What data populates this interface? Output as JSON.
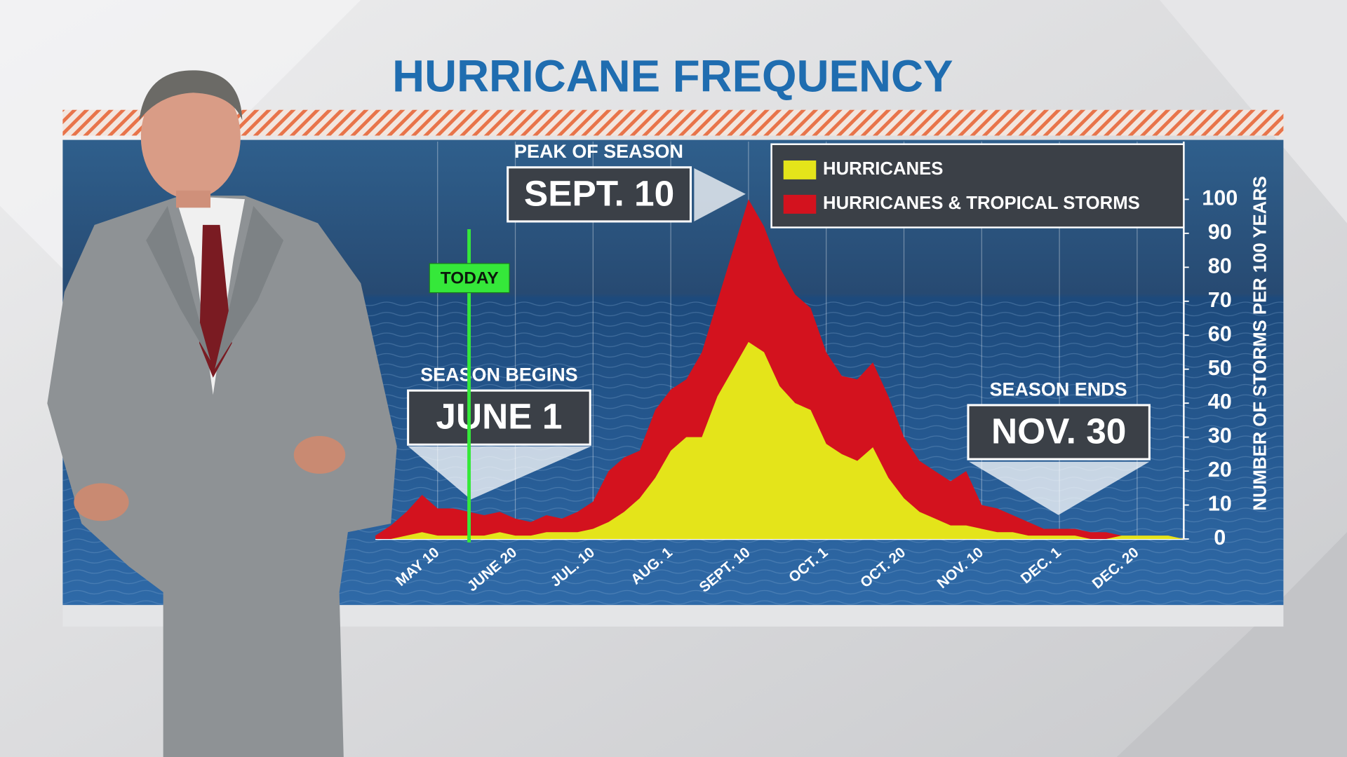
{
  "chart_data": {
    "type": "area",
    "title": "HURRICANE FREQUENCY",
    "categories": [
      null,
      null,
      null,
      null,
      "MAY 10",
      null,
      null,
      null,
      null,
      "JUNE 20",
      null,
      null,
      null,
      null,
      "JUL. 10",
      null,
      null,
      null,
      null,
      "AUG. 1",
      null,
      null,
      null,
      null,
      "SEPT. 10",
      null,
      null,
      null,
      null,
      "OCT. 1",
      null,
      null,
      null,
      null,
      "OCT. 20",
      null,
      null,
      null,
      null,
      "NOV. 10",
      null,
      null,
      null,
      null,
      "DEC. 1",
      null,
      null,
      null,
      null,
      "DEC. 20",
      null,
      null,
      null
    ],
    "series": [
      {
        "name": "HURRICANES",
        "color": "#e4e41a",
        "values": [
          0,
          0,
          1,
          2,
          1,
          1,
          1,
          1,
          2,
          1,
          1,
          2,
          2,
          2,
          3,
          5,
          8,
          12,
          18,
          26,
          30,
          30,
          42,
          50,
          58,
          55,
          45,
          40,
          38,
          28,
          25,
          23,
          27,
          18,
          12,
          8,
          6,
          4,
          4,
          3,
          2,
          2,
          1,
          1,
          1,
          1,
          0,
          0,
          1,
          1,
          1,
          1,
          0
        ]
      },
      {
        "name": "HURRICANES & TROPICAL STORMS",
        "color": "#d3121e",
        "values": [
          1,
          4,
          8,
          13,
          9,
          9,
          8,
          7,
          8,
          6,
          5,
          7,
          6,
          8,
          11,
          20,
          24,
          26,
          38,
          44,
          47,
          55,
          70,
          85,
          100,
          92,
          80,
          72,
          68,
          55,
          48,
          47,
          52,
          42,
          30,
          23,
          20,
          17,
          20,
          10,
          9,
          7,
          5,
          3,
          3,
          3,
          2,
          2,
          1,
          1,
          1,
          1,
          0
        ]
      }
    ],
    "ylabel": "NUMBER OF STORMS PER 100 YEARS",
    "ylim": [
      0,
      117
    ],
    "yticks": [
      0,
      10,
      20,
      30,
      40,
      50,
      60,
      70,
      80,
      90,
      100
    ],
    "grid": true,
    "legend": "upper right",
    "annotations": [
      {
        "label": "PEAK OF SEASON",
        "date": "SEPT. 10"
      },
      {
        "label": "SEASON BEGINS",
        "date": "JUNE 1"
      },
      {
        "label": "SEASON ENDS",
        "date": "NOV. 30"
      },
      {
        "label": "TODAY"
      }
    ]
  }
}
